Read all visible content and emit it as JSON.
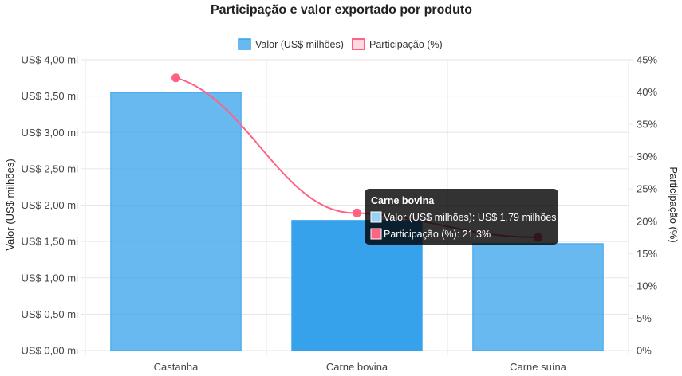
{
  "chart_data": {
    "type": "bar",
    "title": "Participação e valor exportado por produto",
    "categories": [
      "Castanha",
      "Carne bovina",
      "Carne suína"
    ],
    "series": [
      {
        "name": "Valor (US$ milhões)",
        "kind": "bar",
        "axis": "left",
        "values": [
          3.55,
          1.79,
          1.47
        ],
        "color": "#36a2eb"
      },
      {
        "name": "Participação (%)",
        "kind": "line",
        "axis": "right",
        "values": [
          42.2,
          21.3,
          17.5
        ],
        "color": "#ff6384"
      }
    ],
    "y_left": {
      "label": "Valor (US$ milhões)",
      "ylim": [
        0,
        4
      ],
      "ticks": [
        "US$ 0,00 mi",
        "US$ 0,50 mi",
        "US$ 1,00 mi",
        "US$ 1,50 mi",
        "US$ 2,00 mi",
        "US$ 2,50 mi",
        "US$ 3,00 mi",
        "US$ 3,50 mi",
        "US$ 4,00 mi"
      ]
    },
    "y_right": {
      "label": "Participação (%)",
      "ylim": [
        0,
        45
      ],
      "ticks": [
        "0%",
        "5%",
        "10%",
        "15%",
        "20%",
        "25%",
        "30%",
        "35%",
        "40%",
        "45%"
      ]
    },
    "legend_position": "top",
    "grid": true,
    "tooltip": {
      "category_index": 1,
      "title": "Carne bovina",
      "lines": [
        "Valor (US$ milhões): US$ 1,79 milhões",
        "Participação (%): 21,3%"
      ]
    }
  }
}
